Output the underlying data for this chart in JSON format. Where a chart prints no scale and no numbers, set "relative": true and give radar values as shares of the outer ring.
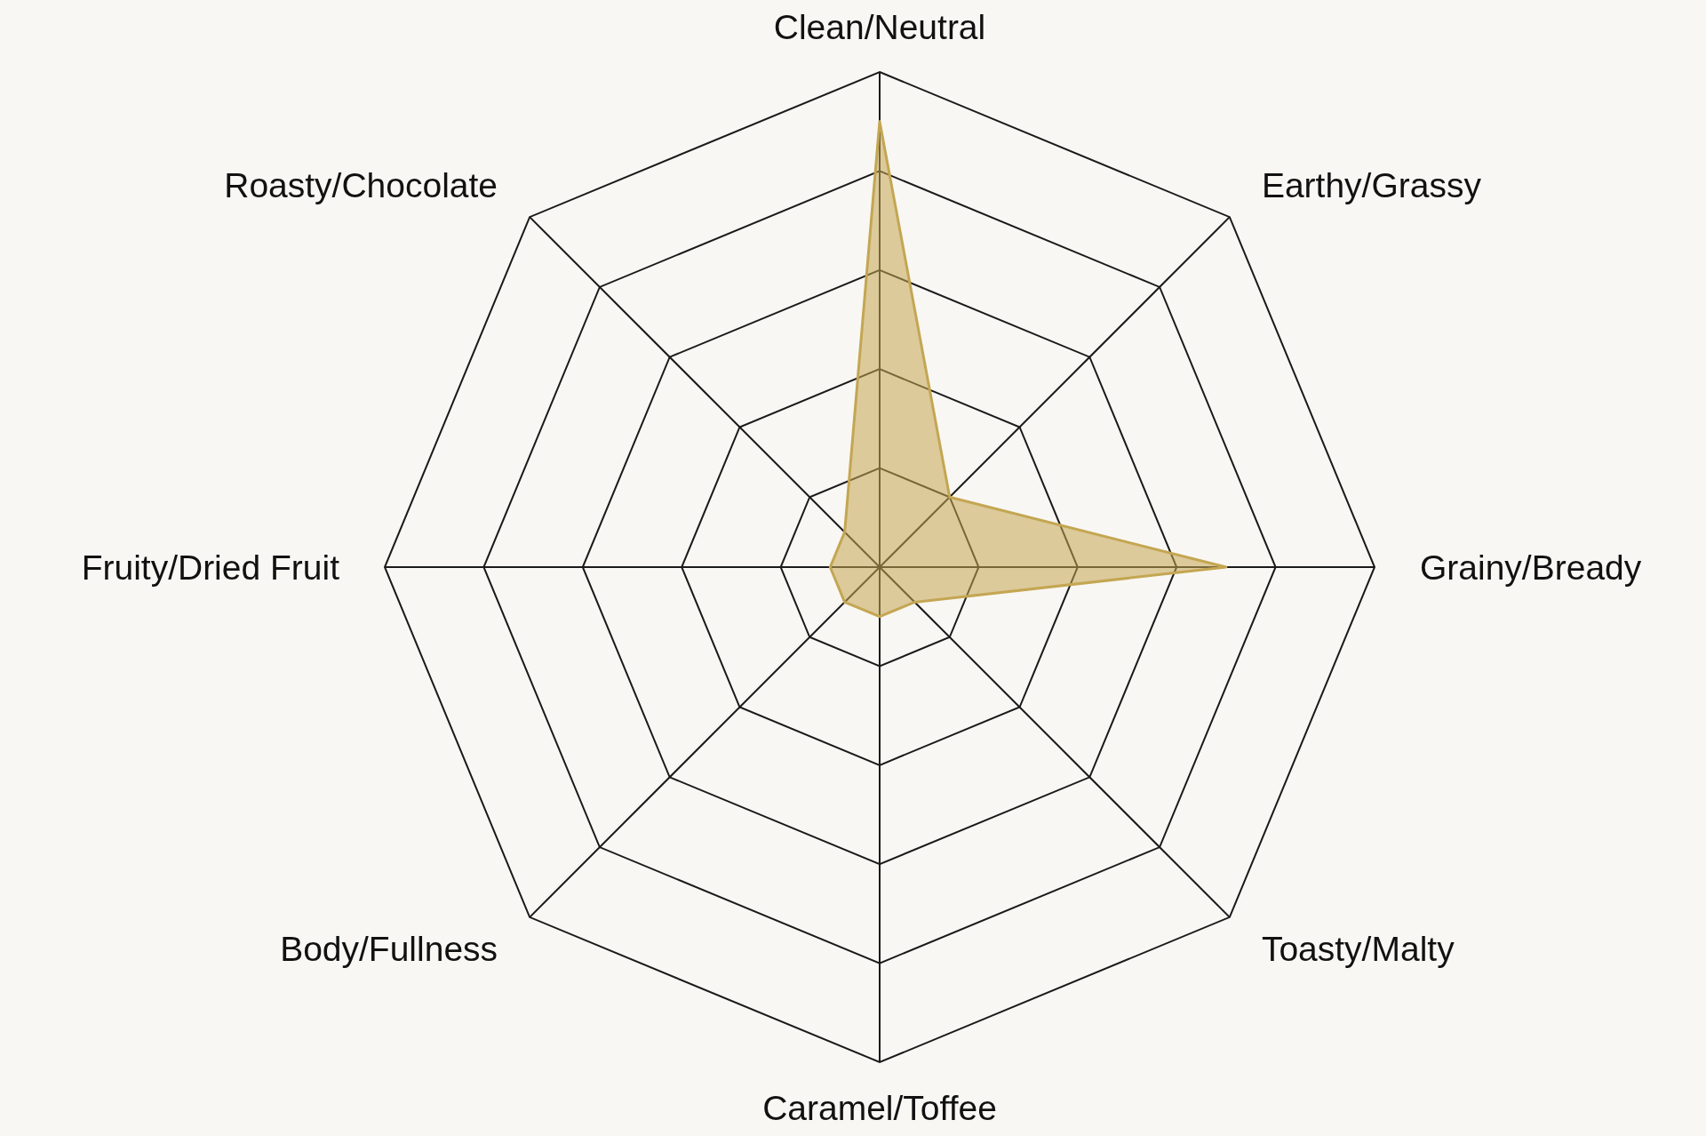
{
  "chart_data": {
    "type": "radar",
    "categories": [
      "Clean/Neutral",
      "Earthy/Grassy",
      "Grainy/Bready",
      "Toasty/Malty",
      "Caramel/Toffee",
      "Body/Fullness",
      "Fruity/Dried Fruit",
      "Roasty/Chocolate"
    ],
    "relative": true,
    "series": [
      {
        "color": "#c4a652",
        "values": [
          0.9,
          0.2,
          0.7,
          0.1,
          0.1,
          0.1,
          0.1,
          0.1
        ]
      }
    ],
    "grid": true
  }
}
